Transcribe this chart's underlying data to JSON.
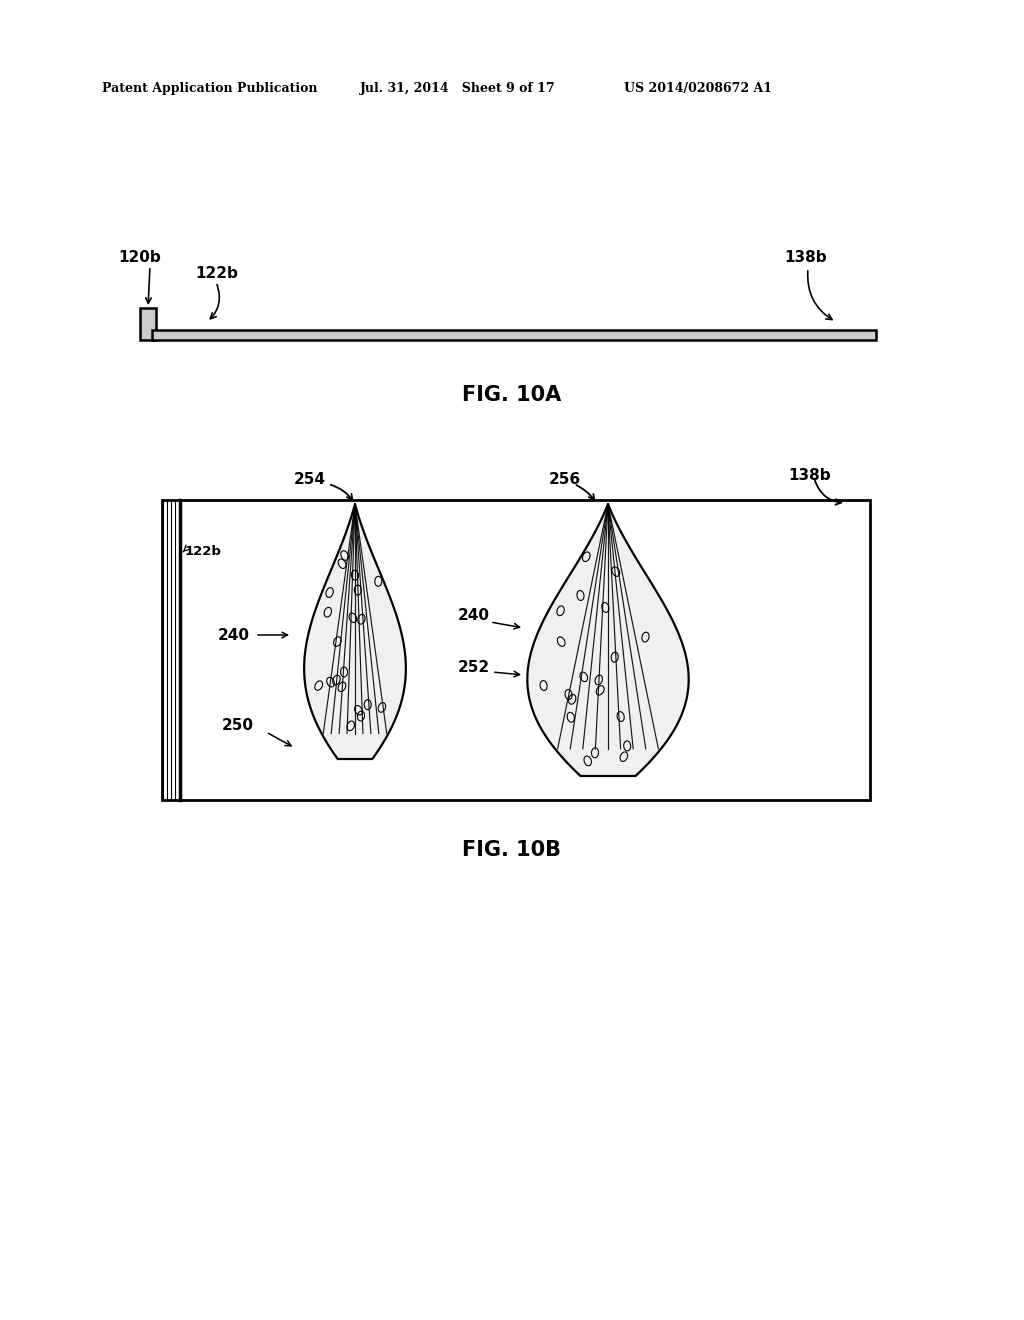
{
  "bg_color": "#ffffff",
  "header_left": "Patent Application Publication",
  "header_mid": "Jul. 31, 2014   Sheet 9 of 17",
  "header_right": "US 2014/0208672 A1",
  "fig10a_label": "FIG. 10A",
  "fig10b_label": "FIG. 10B",
  "label_120b": "120b",
  "label_122b_top": "122b",
  "label_138b_top": "138b",
  "label_254": "254",
  "label_256": "256",
  "label_138b_bot": "138b",
  "label_122b_bot": "122b",
  "label_240_left": "240",
  "label_250": "250",
  "label_240_right": "240",
  "label_252": "252",
  "line_color": "#000000"
}
